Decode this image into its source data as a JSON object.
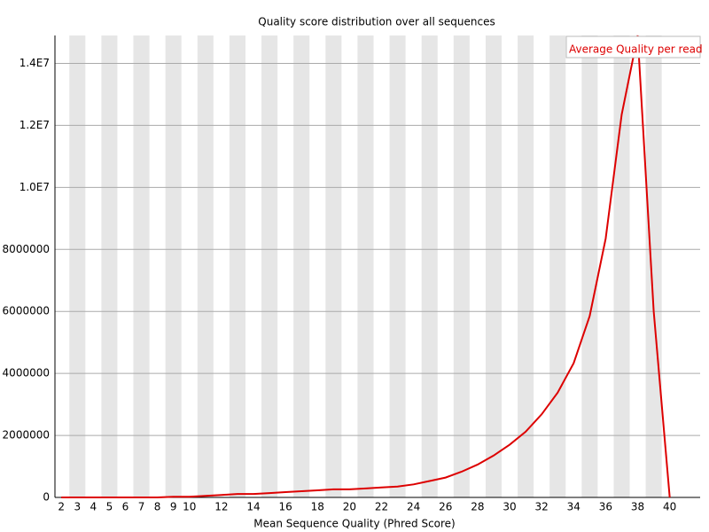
{
  "chart_data": {
    "type": "line",
    "title": "Quality score distribution over all sequences",
    "x_label": "Mean Sequence Quality (Phred Score)",
    "x": [
      2,
      3,
      4,
      5,
      6,
      7,
      8,
      9,
      10,
      11,
      12,
      13,
      14,
      15,
      16,
      17,
      18,
      19,
      20,
      21,
      22,
      23,
      24,
      25,
      26,
      27,
      28,
      29,
      30,
      31,
      32,
      33,
      34,
      35,
      36,
      37,
      38,
      39,
      40
    ],
    "series": [
      {
        "name": "Average Quality per read",
        "color": "#dd0000",
        "values": [
          0,
          0,
          0,
          0,
          0,
          0,
          0,
          20000,
          20000,
          50000,
          80000,
          110000,
          110000,
          140000,
          170000,
          200000,
          230000,
          260000,
          260000,
          290000,
          320000,
          350000,
          420000,
          530000,
          640000,
          830000,
          1060000,
          1350000,
          1700000,
          2120000,
          2680000,
          3380000,
          4330000,
          5850000,
          8350000,
          12350000,
          14900000,
          6000000,
          0
        ]
      }
    ],
    "xlim": [
      1.6,
      41.9
    ],
    "xticks": [
      2,
      3,
      4,
      5,
      6,
      7,
      8,
      9,
      10,
      12,
      14,
      16,
      18,
      20,
      22,
      24,
      26,
      28,
      30,
      32,
      34,
      36,
      38,
      40
    ],
    "ylim": [
      0,
      14900000
    ],
    "yticks": [
      0,
      2000000,
      4000000,
      6000000,
      8000000,
      {
        "value": 10000000,
        "label": "1.0E7"
      },
      {
        "value": 12000000,
        "label": "1.2E7"
      },
      {
        "value": 14000000,
        "label": "1.4E7"
      }
    ],
    "grid": true,
    "legend": "top-right"
  }
}
